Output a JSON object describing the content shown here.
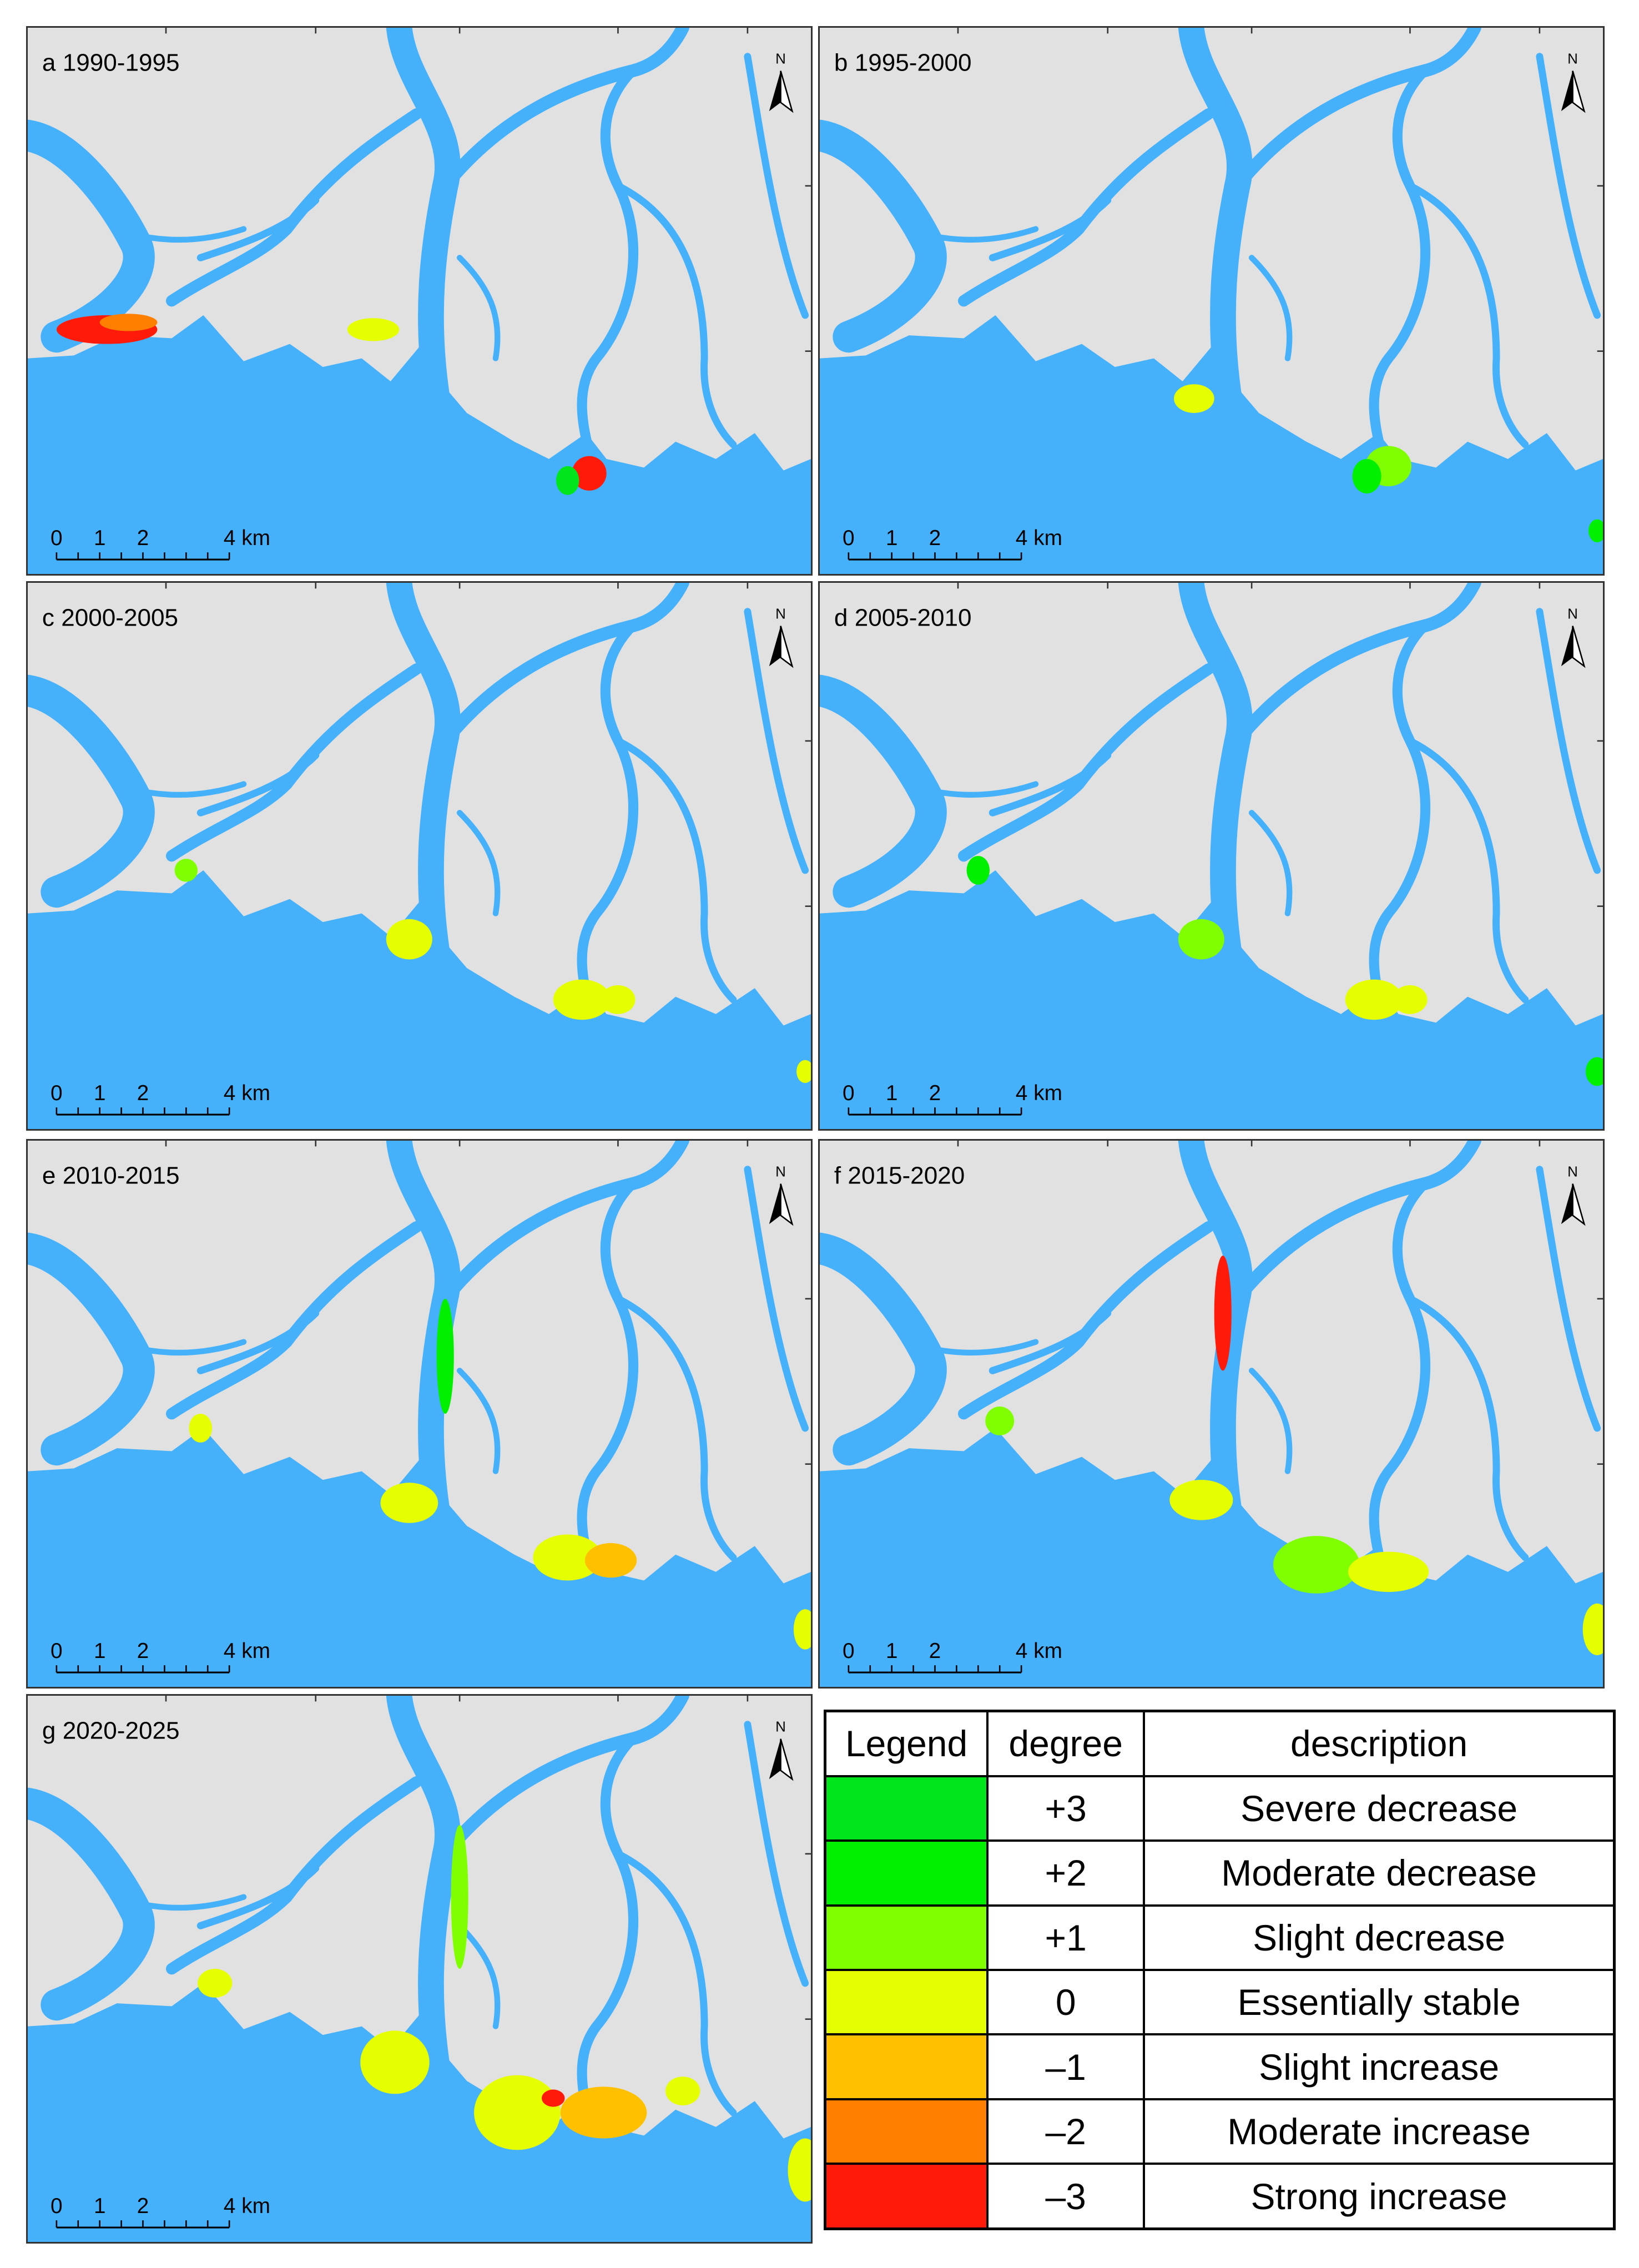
{
  "panels": [
    {
      "label": "a 1990-1995"
    },
    {
      "label": "b 1995-2000"
    },
    {
      "label": "c 2000-2005"
    },
    {
      "label": "d 2005-2010"
    },
    {
      "label": "e 2010-2015"
    },
    {
      "label": "f 2015-2020"
    },
    {
      "label": "g 2020-2025"
    }
  ],
  "north": "N",
  "scale_bar": {
    "labels": [
      "0",
      "1",
      "2",
      "4 km"
    ]
  },
  "legend": {
    "headers": [
      "Legend",
      "degree",
      "description"
    ],
    "rows": [
      {
        "degree": "+3",
        "description": "Severe decrease",
        "color": "#00e51c"
      },
      {
        "degree": "+2",
        "description": "Moderate decrease",
        "color": "#00f000"
      },
      {
        "degree": "+1",
        "description": "Slight decrease",
        "color": "#80ff00"
      },
      {
        "degree": "0",
        "description": "Essentially stable",
        "color": "#e6ff00"
      },
      {
        "degree": "–1",
        "description": "Slight increase",
        "color": "#ffc000"
      },
      {
        "degree": "–2",
        "description": "Moderate increase",
        "color": "#ff8000"
      },
      {
        "degree": "–3",
        "description": "Strong increase",
        "color": "#ff1a0a"
      }
    ]
  }
}
